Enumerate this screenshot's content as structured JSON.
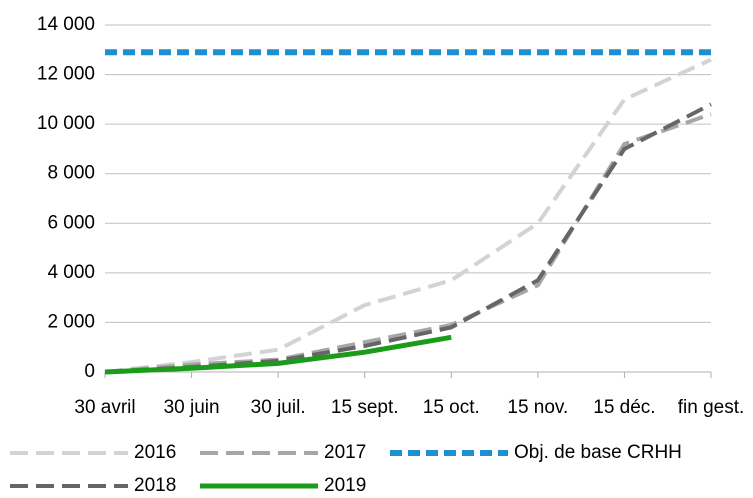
{
  "chart_data": {
    "type": "line",
    "categories": [
      "30 avril",
      "30 juin",
      "30 juil.",
      "15 sept.",
      "15 oct.",
      "15 nov.",
      "15 déc.",
      "fin gest."
    ],
    "series": [
      {
        "name": "2016",
        "color": "#d3d3d3",
        "style": "dashed",
        "values": [
          0,
          400,
          900,
          2700,
          3700,
          6000,
          11000,
          12600
        ]
      },
      {
        "name": "2017",
        "color": "#a6a6a6",
        "style": "dashed",
        "values": [
          0,
          300,
          500,
          1200,
          1900,
          3500,
          9200,
          10400
        ]
      },
      {
        "name": "Obj. de base CRHH",
        "color": "#1e8fd2",
        "style": "dotted",
        "values": [
          12900,
          12900,
          12900,
          12900,
          12900,
          12900,
          12900,
          12900
        ]
      },
      {
        "name": "2018",
        "color": "#666666",
        "style": "dashed",
        "values": [
          0,
          200,
          450,
          1050,
          1800,
          3700,
          9000,
          10800
        ]
      },
      {
        "name": "2019",
        "color": "#1a9c1a",
        "style": "solid",
        "values": [
          0,
          150,
          350,
          800,
          1400,
          null,
          null,
          null
        ]
      }
    ],
    "ylim": [
      0,
      14000
    ],
    "yticks": [
      0,
      {
        "value": 2000,
        "label": "2 000"
      },
      {
        "value": 4000,
        "label": "4 000"
      },
      {
        "value": 6000,
        "label": "6 000"
      },
      {
        "value": 8000,
        "label": "8 000"
      },
      {
        "value": 10000,
        "label": "10 000"
      },
      {
        "value": 12000,
        "label": "12 000"
      },
      {
        "value": 14000,
        "label": "14 000"
      }
    ],
    "grid": true,
    "legend": "bottom"
  }
}
